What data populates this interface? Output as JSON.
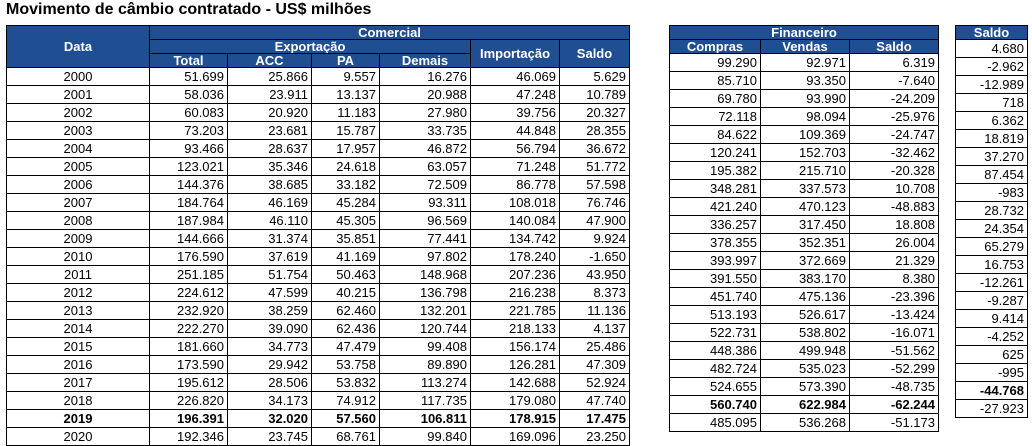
{
  "title": "Movimento de câmbio contratado - US$ milhões",
  "headers": {
    "data": "Data",
    "comercial": "Comercial",
    "exportacao": "Exportação",
    "total": "Total",
    "acc": "ACC",
    "pa": "PA",
    "demais": "Demais",
    "importacao": "Importação",
    "saldo_comercial": "Saldo",
    "financeiro": "Financeiro",
    "compras": "Compras",
    "vendas": "Vendas",
    "saldo_financeiro": "Saldo",
    "saldo_total": "Saldo"
  },
  "header_color": "#1f4e93",
  "rows": [
    {
      "year": "2000",
      "total": "51.699",
      "acc": "25.866",
      "pa": "9.557",
      "demais": "16.276",
      "importacao": "46.069",
      "saldo_c": "5.629",
      "compras": "99.290",
      "vendas": "92.971",
      "saldo_f": "6.319",
      "saldo": "4.680"
    },
    {
      "year": "2001",
      "total": "58.036",
      "acc": "23.911",
      "pa": "13.137",
      "demais": "20.988",
      "importacao": "47.248",
      "saldo_c": "10.789",
      "compras": "85.710",
      "vendas": "93.350",
      "saldo_f": "-7.640",
      "saldo": "-2.962"
    },
    {
      "year": "2002",
      "total": "60.083",
      "acc": "20.920",
      "pa": "11.183",
      "demais": "27.980",
      "importacao": "39.756",
      "saldo_c": "20.327",
      "compras": "69.780",
      "vendas": "93.990",
      "saldo_f": "-24.209",
      "saldo": "-12.989"
    },
    {
      "year": "2003",
      "total": "73.203",
      "acc": "23.681",
      "pa": "15.787",
      "demais": "33.735",
      "importacao": "44.848",
      "saldo_c": "28.355",
      "compras": "72.118",
      "vendas": "98.094",
      "saldo_f": "-25.976",
      "saldo": "718"
    },
    {
      "year": "2004",
      "total": "93.466",
      "acc": "28.637",
      "pa": "17.957",
      "demais": "46.872",
      "importacao": "56.794",
      "saldo_c": "36.672",
      "compras": "84.622",
      "vendas": "109.369",
      "saldo_f": "-24.747",
      "saldo": "6.362"
    },
    {
      "year": "2005",
      "total": "123.021",
      "acc": "35.346",
      "pa": "24.618",
      "demais": "63.057",
      "importacao": "71.248",
      "saldo_c": "51.772",
      "compras": "120.241",
      "vendas": "152.703",
      "saldo_f": "-32.462",
      "saldo": "18.819"
    },
    {
      "year": "2006",
      "total": "144.376",
      "acc": "38.685",
      "pa": "33.182",
      "demais": "72.509",
      "importacao": "86.778",
      "saldo_c": "57.598",
      "compras": "195.382",
      "vendas": "215.710",
      "saldo_f": "-20.328",
      "saldo": "37.270"
    },
    {
      "year": "2007",
      "total": "184.764",
      "acc": "46.169",
      "pa": "45.284",
      "demais": "93.311",
      "importacao": "108.018",
      "saldo_c": "76.746",
      "compras": "348.281",
      "vendas": "337.573",
      "saldo_f": "10.708",
      "saldo": "87.454"
    },
    {
      "year": "2008",
      "total": "187.984",
      "acc": "46.110",
      "pa": "45.305",
      "demais": "96.569",
      "importacao": "140.084",
      "saldo_c": "47.900",
      "compras": "421.240",
      "vendas": "470.123",
      "saldo_f": "-48.883",
      "saldo": "-983"
    },
    {
      "year": "2009",
      "total": "144.666",
      "acc": "31.374",
      "pa": "35.851",
      "demais": "77.441",
      "importacao": "134.742",
      "saldo_c": "9.924",
      "compras": "336.257",
      "vendas": "317.450",
      "saldo_f": "18.808",
      "saldo": "28.732"
    },
    {
      "year": "2010",
      "total": "176.590",
      "acc": "37.619",
      "pa": "41.169",
      "demais": "97.802",
      "importacao": "178.240",
      "saldo_c": "-1.650",
      "compras": "378.355",
      "vendas": "352.351",
      "saldo_f": "26.004",
      "saldo": "24.354"
    },
    {
      "year": "2011",
      "total": "251.185",
      "acc": "51.754",
      "pa": "50.463",
      "demais": "148.968",
      "importacao": "207.236",
      "saldo_c": "43.950",
      "compras": "393.997",
      "vendas": "372.669",
      "saldo_f": "21.329",
      "saldo": "65.279"
    },
    {
      "year": "2012",
      "total": "224.612",
      "acc": "47.599",
      "pa": "40.215",
      "demais": "136.798",
      "importacao": "216.238",
      "saldo_c": "8.373",
      "compras": "391.550",
      "vendas": "383.170",
      "saldo_f": "8.380",
      "saldo": "16.753"
    },
    {
      "year": "2013",
      "total": "232.920",
      "acc": "38.259",
      "pa": "62.460",
      "demais": "132.201",
      "importacao": "221.785",
      "saldo_c": "11.136",
      "compras": "451.740",
      "vendas": "475.136",
      "saldo_f": "-23.396",
      "saldo": "-12.261"
    },
    {
      "year": "2014",
      "total": "222.270",
      "acc": "39.090",
      "pa": "62.436",
      "demais": "120.744",
      "importacao": "218.133",
      "saldo_c": "4.137",
      "compras": "513.193",
      "vendas": "526.617",
      "saldo_f": "-13.424",
      "saldo": "-9.287"
    },
    {
      "year": "2015",
      "total": "181.660",
      "acc": "34.773",
      "pa": "47.479",
      "demais": "99.408",
      "importacao": "156.174",
      "saldo_c": "25.486",
      "compras": "522.731",
      "vendas": "538.802",
      "saldo_f": "-16.071",
      "saldo": "9.414"
    },
    {
      "year": "2016",
      "total": "173.590",
      "acc": "29.942",
      "pa": "53.758",
      "demais": "89.890",
      "importacao": "126.281",
      "saldo_c": "47.309",
      "compras": "448.386",
      "vendas": "499.948",
      "saldo_f": "-51.562",
      "saldo": "-4.252"
    },
    {
      "year": "2017",
      "total": "195.612",
      "acc": "28.506",
      "pa": "53.832",
      "demais": "113.274",
      "importacao": "142.688",
      "saldo_c": "52.924",
      "compras": "482.724",
      "vendas": "535.023",
      "saldo_f": "-52.299",
      "saldo": "625"
    },
    {
      "year": "2018",
      "total": "226.820",
      "acc": "34.173",
      "pa": "74.912",
      "demais": "117.735",
      "importacao": "179.080",
      "saldo_c": "47.740",
      "compras": "524.655",
      "vendas": "573.390",
      "saldo_f": "-48.735",
      "saldo": "-995"
    },
    {
      "year": "2019",
      "total": "196.391",
      "acc": "32.020",
      "pa": "57.560",
      "demais": "106.811",
      "importacao": "178.915",
      "saldo_c": "17.475",
      "compras": "560.740",
      "vendas": "622.984",
      "saldo_f": "-62.244",
      "saldo": "-44.768",
      "bold": true
    },
    {
      "year": "2020",
      "total": "192.346",
      "acc": "23.745",
      "pa": "68.761",
      "demais": "99.840",
      "importacao": "169.096",
      "saldo_c": "23.250",
      "compras": "485.095",
      "vendas": "536.268",
      "saldo_f": "-51.173",
      "saldo": "-27.923"
    }
  ]
}
